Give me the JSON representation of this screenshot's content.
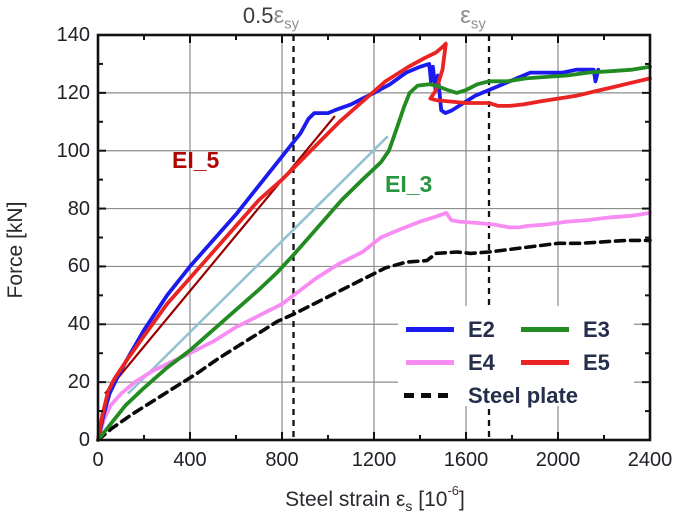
{
  "axes": {
    "ylabel": "Force [kN]",
    "xlabel_text": "Steel strain ",
    "eps": "ε",
    "eps_sub_s": "s",
    "bracket_open": " [10",
    "sup_exp": "-6",
    "bracket_close": "]"
  },
  "top_marks": {
    "half_prefix": "0.5",
    "eps": "ε",
    "sub": "sy"
  },
  "annotations": {
    "ei5": "EI_5",
    "ei3": "EI_3"
  },
  "legend": {
    "items": [
      {
        "label": "E2",
        "color": "#1b1bf0",
        "dash": false
      },
      {
        "label": "E3",
        "color": "#228b22",
        "dash": false
      },
      {
        "label": "E4",
        "color": "#f78df3",
        "dash": false
      },
      {
        "label": "E5",
        "color": "#ea2323",
        "dash": false
      },
      {
        "label": "Steel plate",
        "color": "#0a0a0a",
        "dash": true
      }
    ]
  },
  "chart_data": {
    "type": "line",
    "title": "",
    "xlabel": "Steel strain εs [10^-6]",
    "ylabel": "Force [kN]",
    "xlim": [
      0,
      2400
    ],
    "ylim": [
      0,
      140
    ],
    "x_ticks": [
      0,
      400,
      800,
      1200,
      1600,
      2000,
      2400
    ],
    "x_minor_step": 200,
    "y_ticks": [
      0,
      20,
      40,
      60,
      80,
      100,
      120,
      140
    ],
    "y_minor_step": 10,
    "grid": true,
    "grid_color": "#8c8c8c",
    "legend_position": "bottom-right-inside",
    "vlines": [
      {
        "x": 850,
        "label": "0.5εsy",
        "style": "dashed"
      },
      {
        "x": 1700,
        "label": "εsy",
        "style": "dashed"
      }
    ],
    "reference_lines": [
      {
        "name": "EI_5",
        "color": "#990000",
        "width": 2.2,
        "from": [
          30,
          16
        ],
        "to": [
          1030,
          112
        ]
      },
      {
        "name": "EI_3",
        "color": "#94c2d2",
        "width": 2.6,
        "from": [
          130,
          16
        ],
        "to": [
          1260,
          105
        ]
      }
    ],
    "series": [
      {
        "name": "E2",
        "color": "#1b1bf0",
        "width": 3.8,
        "dash": null,
        "points": [
          [
            0,
            0
          ],
          [
            25,
            9
          ],
          [
            50,
            16
          ],
          [
            80,
            21
          ],
          [
            120,
            27
          ],
          [
            200,
            38
          ],
          [
            300,
            50
          ],
          [
            400,
            60
          ],
          [
            500,
            69
          ],
          [
            600,
            78
          ],
          [
            700,
            88
          ],
          [
            780,
            96
          ],
          [
            850,
            103
          ],
          [
            880,
            106
          ],
          [
            915,
            111
          ],
          [
            940,
            113
          ],
          [
            1000,
            113
          ],
          [
            1030,
            114
          ],
          [
            1100,
            116
          ],
          [
            1150,
            118
          ],
          [
            1200,
            120
          ],
          [
            1270,
            123
          ],
          [
            1340,
            127
          ],
          [
            1400,
            129
          ],
          [
            1440,
            130
          ],
          [
            1448,
            124
          ],
          [
            1456,
            129
          ],
          [
            1468,
            121
          ],
          [
            1478,
            126
          ],
          [
            1492,
            114
          ],
          [
            1510,
            113
          ],
          [
            1540,
            114
          ],
          [
            1580,
            116
          ],
          [
            1640,
            119
          ],
          [
            1700,
            121
          ],
          [
            1760,
            123
          ],
          [
            1820,
            125
          ],
          [
            1880,
            127
          ],
          [
            1950,
            127
          ],
          [
            2020,
            127
          ],
          [
            2080,
            128
          ],
          [
            2130,
            128
          ],
          [
            2155,
            128
          ],
          [
            2163,
            124
          ],
          [
            2175,
            128
          ]
        ]
      },
      {
        "name": "E3",
        "color": "#228b22",
        "width": 3.8,
        "dash": null,
        "points": [
          [
            0,
            0
          ],
          [
            60,
            6
          ],
          [
            120,
            12
          ],
          [
            200,
            18
          ],
          [
            300,
            25
          ],
          [
            400,
            31
          ],
          [
            500,
            38
          ],
          [
            600,
            45
          ],
          [
            700,
            52
          ],
          [
            780,
            58
          ],
          [
            850,
            64
          ],
          [
            950,
            73
          ],
          [
            1060,
            83
          ],
          [
            1150,
            90
          ],
          [
            1230,
            96
          ],
          [
            1265,
            100
          ],
          [
            1300,
            108
          ],
          [
            1330,
            115
          ],
          [
            1355,
            120
          ],
          [
            1390,
            122.5
          ],
          [
            1440,
            123
          ],
          [
            1470,
            122.5
          ],
          [
            1520,
            121
          ],
          [
            1560,
            120
          ],
          [
            1600,
            121
          ],
          [
            1650,
            123
          ],
          [
            1700,
            124
          ],
          [
            1780,
            124
          ],
          [
            1860,
            125
          ],
          [
            1950,
            125.5
          ],
          [
            2040,
            126
          ],
          [
            2130,
            127
          ],
          [
            2230,
            127.5
          ],
          [
            2320,
            128
          ],
          [
            2400,
            129
          ]
        ]
      },
      {
        "name": "E4",
        "color": "#f78df3",
        "width": 3.8,
        "dash": null,
        "points": [
          [
            0,
            0
          ],
          [
            25,
            7
          ],
          [
            55,
            12
          ],
          [
            100,
            16
          ],
          [
            160,
            20
          ],
          [
            240,
            24
          ],
          [
            320,
            27
          ],
          [
            400,
            30
          ],
          [
            500,
            34
          ],
          [
            600,
            39
          ],
          [
            700,
            43
          ],
          [
            800,
            47
          ],
          [
            850,
            50
          ],
          [
            950,
            56
          ],
          [
            1050,
            61
          ],
          [
            1150,
            65
          ],
          [
            1230,
            70
          ],
          [
            1320,
            73
          ],
          [
            1400,
            75.5
          ],
          [
            1460,
            77
          ],
          [
            1515,
            78.5
          ],
          [
            1535,
            76
          ],
          [
            1570,
            75.5
          ],
          [
            1650,
            75
          ],
          [
            1720,
            74.5
          ],
          [
            1790,
            73.5
          ],
          [
            1830,
            73.5
          ],
          [
            1870,
            74
          ],
          [
            1950,
            74.5
          ],
          [
            2040,
            75.5
          ],
          [
            2130,
            76
          ],
          [
            2230,
            77
          ],
          [
            2320,
            77.5
          ],
          [
            2400,
            78.5
          ]
        ]
      },
      {
        "name": "E5",
        "color": "#ea2323",
        "width": 3.8,
        "dash": null,
        "points": [
          [
            0,
            0
          ],
          [
            20,
            9
          ],
          [
            45,
            17
          ],
          [
            70,
            21
          ],
          [
            120,
            27
          ],
          [
            200,
            36
          ],
          [
            300,
            47
          ],
          [
            400,
            56
          ],
          [
            500,
            65
          ],
          [
            600,
            74
          ],
          [
            700,
            83
          ],
          [
            800,
            90
          ],
          [
            850,
            94
          ],
          [
            950,
            102
          ],
          [
            1050,
            110
          ],
          [
            1150,
            117
          ],
          [
            1250,
            124
          ],
          [
            1350,
            129
          ],
          [
            1420,
            132
          ],
          [
            1470,
            134
          ],
          [
            1500,
            136
          ],
          [
            1512,
            137
          ],
          [
            1498,
            128
          ],
          [
            1470,
            121
          ],
          [
            1445,
            118
          ],
          [
            1470,
            117.5
          ],
          [
            1530,
            117
          ],
          [
            1600,
            116.5
          ],
          [
            1660,
            116.5
          ],
          [
            1700,
            116.5
          ],
          [
            1740,
            115.5
          ],
          [
            1790,
            115.5
          ],
          [
            1850,
            116
          ],
          [
            1920,
            117
          ],
          [
            2000,
            118
          ],
          [
            2080,
            119
          ],
          [
            2160,
            120.5
          ],
          [
            2240,
            122
          ],
          [
            2320,
            123.5
          ],
          [
            2400,
            125
          ]
        ]
      },
      {
        "name": "Steel plate",
        "color": "#0a0a0a",
        "width": 3.6,
        "dash": "9 6",
        "points": [
          [
            0,
            0
          ],
          [
            60,
            4
          ],
          [
            150,
            9
          ],
          [
            250,
            14
          ],
          [
            350,
            19
          ],
          [
            430,
            23
          ],
          [
            520,
            28
          ],
          [
            600,
            32
          ],
          [
            700,
            37
          ],
          [
            780,
            41
          ],
          [
            850,
            43.5
          ],
          [
            950,
            47.5
          ],
          [
            1050,
            51.5
          ],
          [
            1150,
            55.5
          ],
          [
            1250,
            59.5
          ],
          [
            1340,
            61.5
          ],
          [
            1430,
            62
          ],
          [
            1470,
            64.5
          ],
          [
            1560,
            65
          ],
          [
            1620,
            64.5
          ],
          [
            1700,
            65
          ],
          [
            1800,
            66
          ],
          [
            1900,
            67
          ],
          [
            2000,
            68
          ],
          [
            2100,
            68
          ],
          [
            2200,
            68.5
          ],
          [
            2300,
            69
          ],
          [
            2400,
            69
          ]
        ]
      }
    ]
  }
}
